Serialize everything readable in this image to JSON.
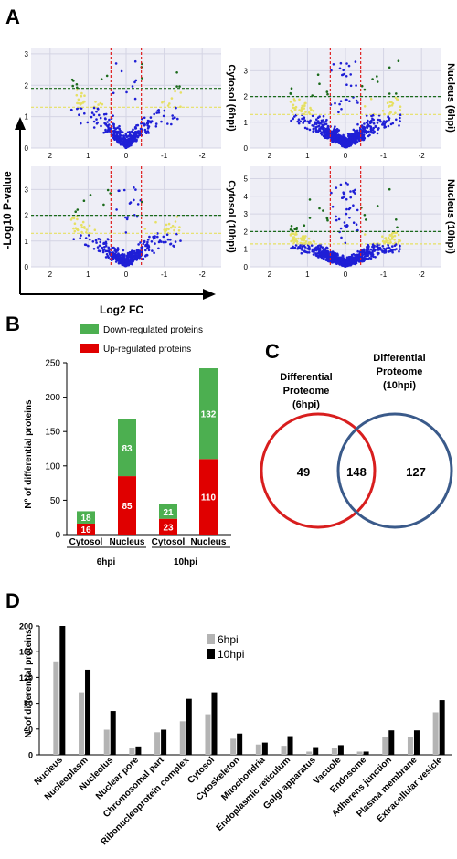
{
  "panels": {
    "A": "A",
    "B": "B",
    "C": "C",
    "D": "D"
  },
  "panel_a": {
    "y_axis_label": "-Log10 P-value",
    "x_axis_label": "Log2 FC",
    "plots": [
      {
        "label": "Cytosol (6hpi)",
        "yticks": [
          0,
          1,
          2,
          3
        ],
        "ymax": 3.2,
        "sig_line": 1.9,
        "fdr_line": 1.3,
        "n_points": 420
      },
      {
        "label": "Nucleus (6hpi)",
        "yticks": [
          0,
          1,
          2,
          3
        ],
        "ymax": 3.9,
        "sig_line": 2.0,
        "fdr_line": 1.3,
        "n_points": 900
      },
      {
        "label": "Cytosol (10hpi)",
        "yticks": [
          0,
          1,
          2,
          3
        ],
        "ymax": 3.9,
        "sig_line": 2.0,
        "fdr_line": 1.3,
        "n_points": 500
      },
      {
        "label": "Nucleus (10hpi)",
        "yticks": [
          0,
          1,
          2,
          3,
          4,
          5
        ],
        "ymax": 5.7,
        "sig_line": 2.0,
        "fdr_line": 1.3,
        "n_points": 1300
      }
    ],
    "xticks": [
      "2",
      "1",
      "0",
      "-1",
      "-2"
    ],
    "colors": {
      "blue": "#1f1fd6",
      "yellow": "#e6e063",
      "green": "#1a6a1a",
      "red": "#e02020",
      "bg": "#eeeef6",
      "grid": "#d4d4e4"
    }
  },
  "chart_data": [
    {
      "type": "bar",
      "stacked": true,
      "ylabel": "Nº of differential proteins",
      "ylim": [
        0,
        250
      ],
      "yticks": [
        0,
        50,
        100,
        150,
        200,
        250
      ],
      "categories": [
        "Cytosol",
        "Nucleus",
        "Cytosol",
        "Nucleus"
      ],
      "groups": [
        {
          "label": "6hpi",
          "categories": [
            0,
            1
          ]
        },
        {
          "label": "10hpi",
          "categories": [
            2,
            3
          ]
        }
      ],
      "series": [
        {
          "name": "Up-regulated proteins",
          "color": "#e00000",
          "values": [
            16,
            85,
            23,
            110
          ]
        },
        {
          "name": "Down-regulated proteins",
          "color": "#4caf50",
          "values": [
            18,
            83,
            21,
            132
          ]
        }
      ],
      "legend": "top"
    },
    {
      "type": "venn",
      "sets": [
        {
          "label": [
            "Differential",
            "Proteome",
            "(6hpi)"
          ],
          "only": 49,
          "color": "#d81e1e"
        },
        {
          "label": [
            "Differential",
            "Proteome",
            "(10hpi)"
          ],
          "only": 127,
          "color": "#3a5a8a"
        }
      ],
      "intersection": 148
    },
    {
      "type": "bar",
      "ylabel": "Nº of differential proteins",
      "ylim": [
        0,
        200
      ],
      "yticks": [
        0,
        40,
        80,
        120,
        160,
        200
      ],
      "categories": [
        "Nucleus",
        "Nucleoplasm",
        "Nucleolus",
        "Nuclear pore",
        "Chromosomal part",
        "Ribonucleoprotein complex",
        "Cytosol",
        "Cytoskeleton",
        "Mitochondria",
        "Endoplasmic reticulum",
        "Golgi apparatus",
        "Vacuole",
        "Endosome",
        "Adherens junction",
        "Plasma membrane",
        "Extracellular vesicle"
      ],
      "series": [
        {
          "name": "6hpi",
          "color": "#b4b4b4",
          "values": [
            145,
            97,
            39,
            10,
            35,
            52,
            63,
            25,
            16,
            14,
            5,
            10,
            5,
            28,
            28,
            66
          ]
        },
        {
          "name": "10hpi",
          "color": "#000000",
          "values": [
            200,
            132,
            68,
            13,
            39,
            87,
            97,
            33,
            19,
            29,
            12,
            15,
            5,
            38,
            38,
            85
          ]
        }
      ],
      "legend": "top"
    }
  ]
}
